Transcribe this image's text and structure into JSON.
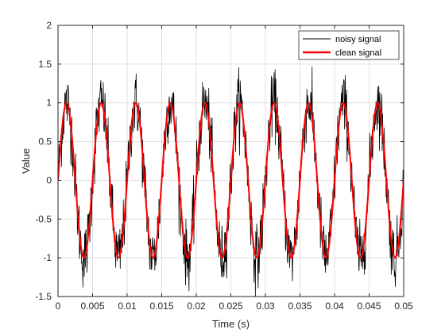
{
  "chart_data": {
    "type": "line",
    "title": "",
    "xlabel": "Time (s)",
    "ylabel": "Value",
    "xlim": [
      0,
      0.05
    ],
    "ylim": [
      -1.5,
      2
    ],
    "xticks": [
      0,
      0.005,
      0.01,
      0.015,
      0.02,
      0.025,
      0.03,
      0.035,
      0.04,
      0.045,
      0.05
    ],
    "xtick_labels": [
      "0",
      "0.005",
      "0.01",
      "0.015",
      "0.02",
      "0.025",
      "0.03",
      "0.035",
      "0.04",
      "0.045",
      "0.05"
    ],
    "yticks": [
      -1.5,
      -1,
      -0.5,
      0,
      0.5,
      1,
      1.5,
      2
    ],
    "ytick_labels": [
      "-1.5",
      "-1",
      "-0.5",
      "0",
      "0.5",
      "1",
      "1.5",
      "2"
    ],
    "grid": true,
    "legend_position": "top-right",
    "series": [
      {
        "name": "noisy signal",
        "color": "#000000",
        "description_frequency_hz": 200,
        "amplitude": 1,
        "noise_std": 0.2,
        "x_start": 0,
        "x_end": 0.05,
        "samples": 1001
      },
      {
        "name": "clean signal",
        "color": "#ff0000",
        "frequency_hz": 200,
        "amplitude": 1,
        "x_start": 0,
        "x_end": 0.05,
        "samples": 501
      }
    ]
  }
}
